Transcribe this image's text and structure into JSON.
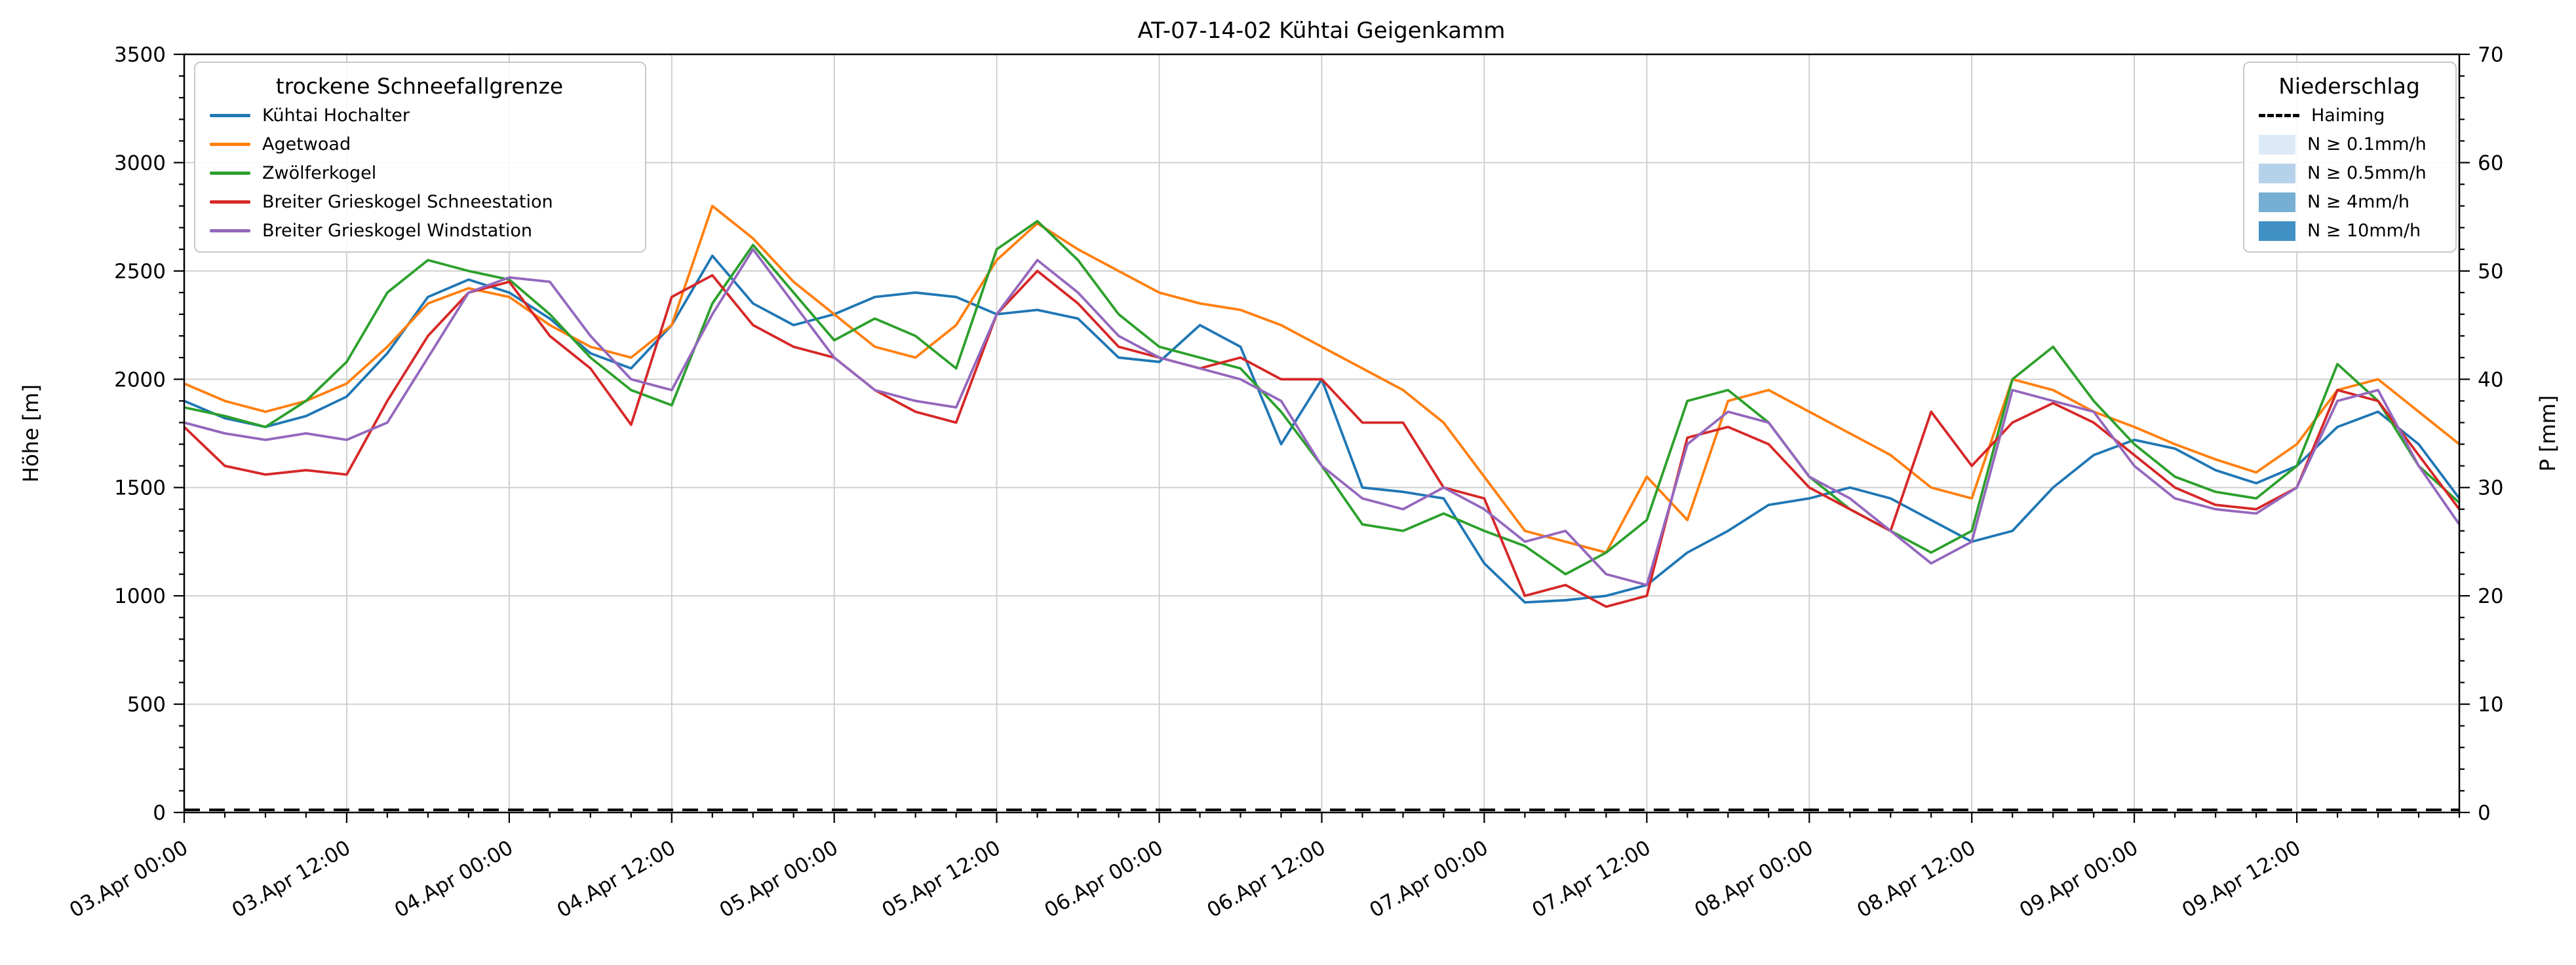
{
  "title": "AT-07-14-02 Kühtai Geigenkamm",
  "axes": {
    "y_left": {
      "label": "Höhe [m]",
      "min": 0,
      "max": 3500,
      "tick_step": 500,
      "minor_step": 100,
      "ticks": [
        0,
        500,
        1000,
        1500,
        2000,
        2500,
        3000,
        3500
      ]
    },
    "y_right": {
      "label": "P [mm]",
      "min": 0,
      "max": 70,
      "tick_step": 10,
      "minor_step": 2,
      "ticks": [
        0,
        10,
        20,
        30,
        40,
        50,
        60,
        70
      ]
    },
    "x": {
      "min_hours": 0,
      "max_hours": 168,
      "minor_step_hours": 3,
      "tick_hours": [
        0,
        12,
        24,
        36,
        48,
        60,
        72,
        84,
        96,
        108,
        120,
        132,
        144,
        156
      ],
      "tick_labels": [
        "03.Apr 00:00",
        "03.Apr 12:00",
        "04.Apr 00:00",
        "04.Apr 12:00",
        "05.Apr 00:00",
        "05.Apr 12:00",
        "06.Apr 00:00",
        "06.Apr 12:00",
        "07.Apr 00:00",
        "07.Apr 12:00",
        "08.Apr 00:00",
        "08.Apr 12:00",
        "09.Apr 00:00",
        "09.Apr 12:00"
      ]
    }
  },
  "legend_snowline": {
    "title": "trockene Schneefallgrenze",
    "items": [
      {
        "label": "Kühtai Hochalter",
        "swatch": "line",
        "color": "#1f77b4"
      },
      {
        "label": "Agetwoad",
        "swatch": "line",
        "color": "#ff7f0e"
      },
      {
        "label": "Zwölferkogel",
        "swatch": "line",
        "color": "#2ca02c"
      },
      {
        "label": "Breiter Grieskogel Schneestation",
        "swatch": "line",
        "color": "#d62728"
      },
      {
        "label": "Breiter Grieskogel Windstation",
        "swatch": "line",
        "color": "#9467bd"
      }
    ]
  },
  "legend_precip": {
    "title": "Niederschlag",
    "items": [
      {
        "label": "Haiming",
        "swatch": "dashed-line",
        "color": "#000000"
      },
      {
        "label": "N ≥ 0.1mm/h",
        "swatch": "patch",
        "color": "#dce9f6"
      },
      {
        "label": "N ≥ 0.5mm/h",
        "swatch": "patch",
        "color": "#b5d2ea"
      },
      {
        "label": "N ≥ 4mm/h",
        "swatch": "patch",
        "color": "#77aed4"
      },
      {
        "label": "N ≥ 10mm/h",
        "swatch": "patch",
        "color": "#4191c6"
      }
    ]
  },
  "chart_data": {
    "type": "line",
    "title": "AT-07-14-02 Kühtai Geigenkamm",
    "xlabel": "",
    "ylabel_left": "Höhe [m]",
    "ylabel_right": "P [mm]",
    "ylim_left": [
      0,
      3500
    ],
    "ylim_right": [
      0,
      70
    ],
    "xlim_hours": [
      0,
      168
    ],
    "x_unit": "hours since 03.Apr 00:00",
    "grid": true,
    "x_hours": [
      0,
      3,
      6,
      9,
      12,
      15,
      18,
      21,
      24,
      27,
      30,
      33,
      36,
      39,
      42,
      45,
      48,
      51,
      54,
      57,
      60,
      63,
      66,
      69,
      72,
      75,
      78,
      81,
      84,
      87,
      90,
      93,
      96,
      99,
      102,
      105,
      108,
      111,
      114,
      117,
      120,
      123,
      126,
      129,
      132,
      135,
      138,
      141,
      144,
      147,
      150,
      153,
      156,
      159,
      162,
      165,
      168
    ],
    "series": [
      {
        "name": "Kühtai Hochalter",
        "color": "#1f77b4",
        "axis": "left",
        "dash": false,
        "values": [
          1900,
          1820,
          1780,
          1830,
          1920,
          2120,
          2380,
          2460,
          2400,
          2280,
          2120,
          2050,
          2250,
          2570,
          2350,
          2250,
          2300,
          2380,
          2400,
          2380,
          2300,
          2320,
          2280,
          2100,
          2080,
          2250,
          2150,
          1700,
          2000,
          1500,
          1480,
          1450,
          1150,
          970,
          980,
          1000,
          1050,
          1200,
          1300,
          1420,
          1450,
          1500,
          1450,
          1350,
          1250,
          1300,
          1500,
          1650,
          1720,
          1680,
          1580,
          1520,
          1600,
          1780,
          1850,
          1700,
          1450
        ]
      },
      {
        "name": "Agetwoad",
        "color": "#ff7f0e",
        "axis": "left",
        "dash": false,
        "values": [
          1980,
          1900,
          1850,
          1900,
          1980,
          2150,
          2350,
          2420,
          2380,
          2250,
          2150,
          2100,
          2250,
          2800,
          2650,
          2450,
          2300,
          2150,
          2100,
          2250,
          2550,
          2720,
          2600,
          2500,
          2400,
          2350,
          2320,
          2250,
          2150,
          2050,
          1950,
          1800,
          1550,
          1300,
          1250,
          1200,
          1550,
          1350,
          1900,
          1950,
          1850,
          1750,
          1650,
          1500,
          1450,
          2000,
          1950,
          1850,
          1780,
          1700,
          1630,
          1570,
          1700,
          1950,
          2000,
          1850,
          1700
        ]
      },
      {
        "name": "Zwölferkogel",
        "color": "#2ca02c",
        "axis": "left",
        "dash": false,
        "values": [
          1870,
          1830,
          1780,
          1900,
          2080,
          2400,
          2550,
          2500,
          2460,
          2300,
          2100,
          1950,
          1880,
          2350,
          2620,
          2400,
          2180,
          2280,
          2200,
          2050,
          2600,
          2730,
          2550,
          2300,
          2150,
          2100,
          2050,
          1850,
          1600,
          1330,
          1300,
          1380,
          1300,
          1230,
          1100,
          1200,
          1350,
          1900,
          1950,
          1800,
          1550,
          1400,
          1300,
          1200,
          1300,
          2000,
          2150,
          1900,
          1700,
          1550,
          1480,
          1450,
          1600,
          2070,
          1900,
          1600,
          1430
        ]
      },
      {
        "name": "Breiter Grieskogel Schneestation",
        "color": "#d62728",
        "axis": "left",
        "dash": false,
        "values": [
          1780,
          1600,
          1560,
          1580,
          1560,
          1900,
          2200,
          2400,
          2450,
          2200,
          2050,
          1790,
          2380,
          2480,
          2250,
          2150,
          2100,
          1950,
          1850,
          1800,
          2300,
          2500,
          2350,
          2150,
          2100,
          2050,
          2100,
          2000,
          2000,
          1800,
          1800,
          1500,
          1450,
          1000,
          1050,
          950,
          1000,
          1730,
          1780,
          1700,
          1500,
          1400,
          1300,
          1850,
          1600,
          1800,
          1890,
          1800,
          1650,
          1500,
          1420,
          1400,
          1500,
          1950,
          1900,
          1650,
          1400
        ]
      },
      {
        "name": "Breiter Grieskogel Windstation",
        "color": "#9467bd",
        "axis": "left",
        "dash": false,
        "values": [
          1800,
          1750,
          1720,
          1750,
          1720,
          1800,
          2100,
          2400,
          2470,
          2450,
          2200,
          2000,
          1950,
          2300,
          2600,
          2350,
          2100,
          1950,
          1900,
          1870,
          2300,
          2550,
          2400,
          2200,
          2100,
          2050,
          2000,
          1900,
          1600,
          1450,
          1400,
          1500,
          1400,
          1250,
          1300,
          1100,
          1050,
          1700,
          1850,
          1800,
          1550,
          1450,
          1300,
          1150,
          1250,
          1950,
          1900,
          1850,
          1600,
          1450,
          1400,
          1380,
          1500,
          1900,
          1950,
          1600,
          1330
        ]
      },
      {
        "name": "Haiming",
        "color": "#000000",
        "axis": "right",
        "dash": true,
        "values": [
          0,
          0,
          0,
          0,
          0,
          0,
          0,
          0,
          0,
          0,
          0,
          0,
          0,
          0,
          0,
          0,
          0,
          0,
          0,
          0,
          0,
          0,
          0,
          0,
          0,
          0,
          0,
          0,
          0,
          0,
          0,
          0,
          0,
          0,
          0,
          0,
          0,
          0,
          0,
          0,
          0,
          0,
          0,
          0,
          0,
          0,
          0,
          0,
          0,
          0,
          0,
          0,
          0,
          0,
          0,
          0,
          0
        ]
      }
    ]
  }
}
